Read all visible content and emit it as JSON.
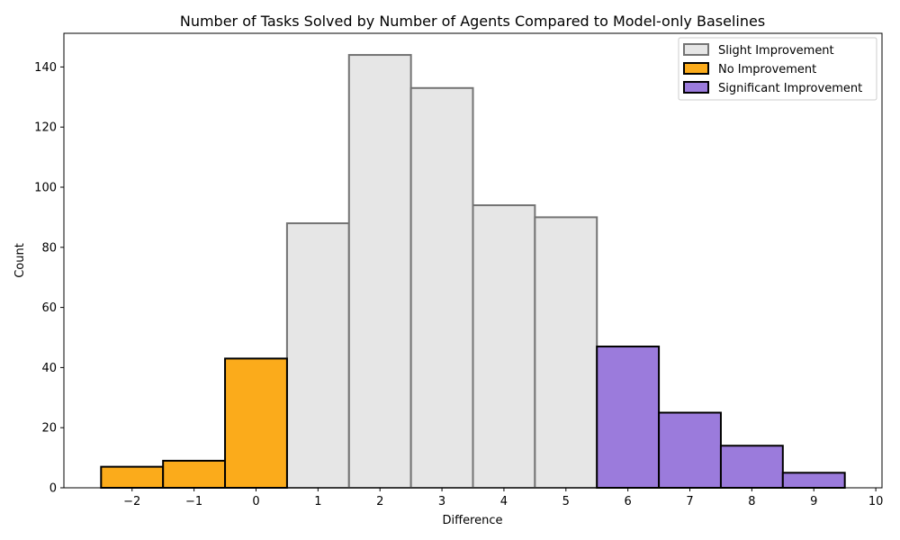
{
  "chart_data": {
    "type": "bar",
    "title": "Number of Tasks Solved by Number of Agents Compared to Model-only Baselines",
    "xlabel": "Difference",
    "ylabel": "Count",
    "xlim": [
      -3.1,
      10.1
    ],
    "ylim": [
      0,
      151.2
    ],
    "xticks": [
      -2,
      -1,
      0,
      1,
      2,
      3,
      4,
      5,
      6,
      7,
      8,
      9,
      10
    ],
    "xtick_labels": [
      "−2",
      "−1",
      "0",
      "1",
      "2",
      "3",
      "4",
      "5",
      "6",
      "7",
      "8",
      "9",
      "10"
    ],
    "yticks": [
      0,
      20,
      40,
      60,
      80,
      100,
      120,
      140
    ],
    "bar_width": 1,
    "legend_position": "top-right",
    "grid": false,
    "series": [
      {
        "name": "Slight Improvement",
        "fill": "#e6e6e6",
        "edge": "#737373",
        "points": [
          {
            "x": 1,
            "y": 88
          },
          {
            "x": 2,
            "y": 144
          },
          {
            "x": 3,
            "y": 133
          },
          {
            "x": 4,
            "y": 94
          },
          {
            "x": 5,
            "y": 90
          }
        ]
      },
      {
        "name": "No Improvement",
        "fill": "#fbab1b",
        "edge": "#000000",
        "points": [
          {
            "x": -2,
            "y": 7
          },
          {
            "x": -1,
            "y": 9
          },
          {
            "x": 0,
            "y": 43
          }
        ]
      },
      {
        "name": "Significant Improvement",
        "fill": "#9b7bdc",
        "edge": "#000000",
        "points": [
          {
            "x": 6,
            "y": 47
          },
          {
            "x": 7,
            "y": 25
          },
          {
            "x": 8,
            "y": 14
          },
          {
            "x": 9,
            "y": 5
          }
        ]
      }
    ]
  }
}
